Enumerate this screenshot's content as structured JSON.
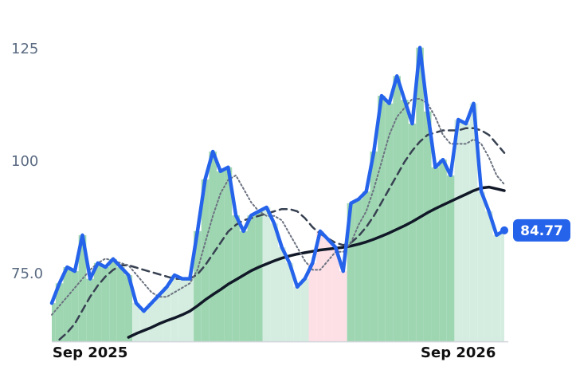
{
  "chart_data": {
    "type": "line",
    "categories": [
      null,
      null,
      null,
      null,
      null,
      "Sep 2025",
      null,
      null,
      null,
      null,
      null,
      null,
      null,
      null,
      null,
      null,
      null,
      null,
      null,
      null,
      null,
      null,
      null,
      null,
      null,
      null,
      null,
      null,
      null,
      null,
      null,
      null,
      null,
      null,
      null,
      null,
      null,
      null,
      null,
      null,
      null,
      null,
      null,
      null,
      null,
      null,
      null,
      null,
      null,
      null,
      null,
      null,
      null,
      "Sep 2026",
      null,
      null,
      null,
      null,
      null,
      null
    ],
    "series": [
      {
        "color": "#2563eb",
        "dash": "solid",
        "width": 4.5,
        "values": [
          68.6,
          73,
          76.6,
          75.7,
          83.7,
          74,
          77.5,
          76.6,
          78.4,
          76.6,
          74.8,
          68.6,
          66.8,
          68.6,
          70.4,
          72.2,
          74.8,
          74,
          74,
          84.6,
          96.1,
          102.3,
          97.9,
          98.8,
          88.1,
          84.6,
          88.1,
          89,
          89.9,
          86.3,
          81,
          77.5,
          72.2,
          74,
          77.5,
          84.6,
          82.8,
          81,
          75.7,
          90.8,
          91.7,
          93.4,
          102.3,
          114.7,
          113,
          119.1,
          113.8,
          108.5,
          125.4,
          111.2,
          98.8,
          100.5,
          97,
          109.4,
          108.5,
          113,
          93.4,
          89,
          83.7,
          84.77
        ]
      },
      {
        "color": "#6b7280",
        "dash": "dotted",
        "width": 2,
        "values": [
          66,
          68,
          70,
          72,
          74,
          76,
          77.5,
          78.5,
          78,
          77.5,
          77,
          75,
          73,
          71,
          70,
          70,
          71,
          72,
          73,
          76,
          82,
          88,
          93,
          96,
          97,
          94,
          91,
          89,
          88,
          88,
          87,
          84,
          81,
          78,
          76,
          76,
          78,
          80,
          80,
          82,
          86,
          89,
          94,
          100,
          106,
          110,
          112,
          114,
          114,
          113,
          110,
          106,
          104,
          104,
          104,
          105,
          104,
          101,
          97,
          95
        ]
      },
      {
        "color": "#374151",
        "dash": "dashed",
        "width": 2.5,
        "values": [
          null,
          60.5,
          62,
          64,
          67,
          70,
          72.5,
          74.5,
          76,
          77,
          77,
          76.5,
          76,
          75.5,
          75,
          74.5,
          74,
          74,
          74,
          75,
          77,
          79.5,
          82,
          84.5,
          86,
          87,
          87.5,
          88,
          88.5,
          89,
          89.5,
          89.5,
          89,
          87.5,
          85.5,
          84,
          83,
          82,
          81.5,
          82,
          83.5,
          85.5,
          88,
          91,
          94,
          97,
          100,
          102.5,
          104.5,
          106,
          106.5,
          107,
          107,
          107,
          107.5,
          107.5,
          107,
          106,
          104,
          102
        ]
      },
      {
        "color": "#111827",
        "dash": "solid",
        "width": 3.5,
        "values": [
          null,
          null,
          null,
          null,
          null,
          null,
          null,
          null,
          null,
          null,
          61,
          61.8,
          62.5,
          63.2,
          64,
          64.7,
          65.3,
          66,
          66.8,
          68,
          69.3,
          70.5,
          71.6,
          72.8,
          73.8,
          74.8,
          75.8,
          76.6,
          77.3,
          78,
          78.6,
          79.1,
          79.5,
          79.8,
          80.1,
          80.4,
          80.6,
          80.8,
          81,
          81.3,
          81.7,
          82.2,
          82.8,
          83.5,
          84.2,
          85,
          85.8,
          86.7,
          87.7,
          88.7,
          89.6,
          90.4,
          91.2,
          92,
          92.8,
          93.6,
          94.2,
          94.4,
          94,
          93.6
        ]
      }
    ],
    "area_colors": [
      "#9fd6b2",
      "#9fd6b2",
      "#9fd6b2",
      "#9fd6b2",
      "#9fd6b2",
      "#9fd6b2",
      "#9fd6b2",
      "#9fd6b2",
      "#9fd6b2",
      "#9fd6b2",
      "#9fd6b2",
      "#d5ede0",
      "#d5ede0",
      "#d5ede0",
      "#d5ede0",
      "#d5ede0",
      "#d5ede0",
      "#d5ede0",
      "#d5ede0",
      "#9fd6b2",
      "#9fd6b2",
      "#9fd6b2",
      "#9fd6b2",
      "#9fd6b2",
      "#9fd6b2",
      "#9fd6b2",
      "#9fd6b2",
      "#9fd6b2",
      "#d5ede0",
      "#d5ede0",
      "#d5ede0",
      "#d5ede0",
      "#d5ede0",
      "#d5ede0",
      "#fde0e6",
      "#fde0e6",
      "#fde0e6",
      "#fde0e6",
      "#fde0e6",
      "#9fd6b2",
      "#9fd6b2",
      "#9fd6b2",
      "#9fd6b2",
      "#9fd6b2",
      "#9fd6b2",
      "#9fd6b2",
      "#9fd6b2",
      "#9fd6b2",
      "#9fd6b2",
      "#9fd6b2",
      "#9fd6b2",
      "#9fd6b2",
      "#9fd6b2",
      "#d5ede0",
      "#d5ede0",
      "#d5ede0",
      "#d5ede0",
      "#d5ede0",
      "#d5ede0",
      "#d5ede0"
    ],
    "ylim": [
      60,
      130
    ],
    "yticks": [
      {
        "value": 75,
        "label": "75.0"
      },
      100,
      125
    ],
    "grid": false
  }
}
